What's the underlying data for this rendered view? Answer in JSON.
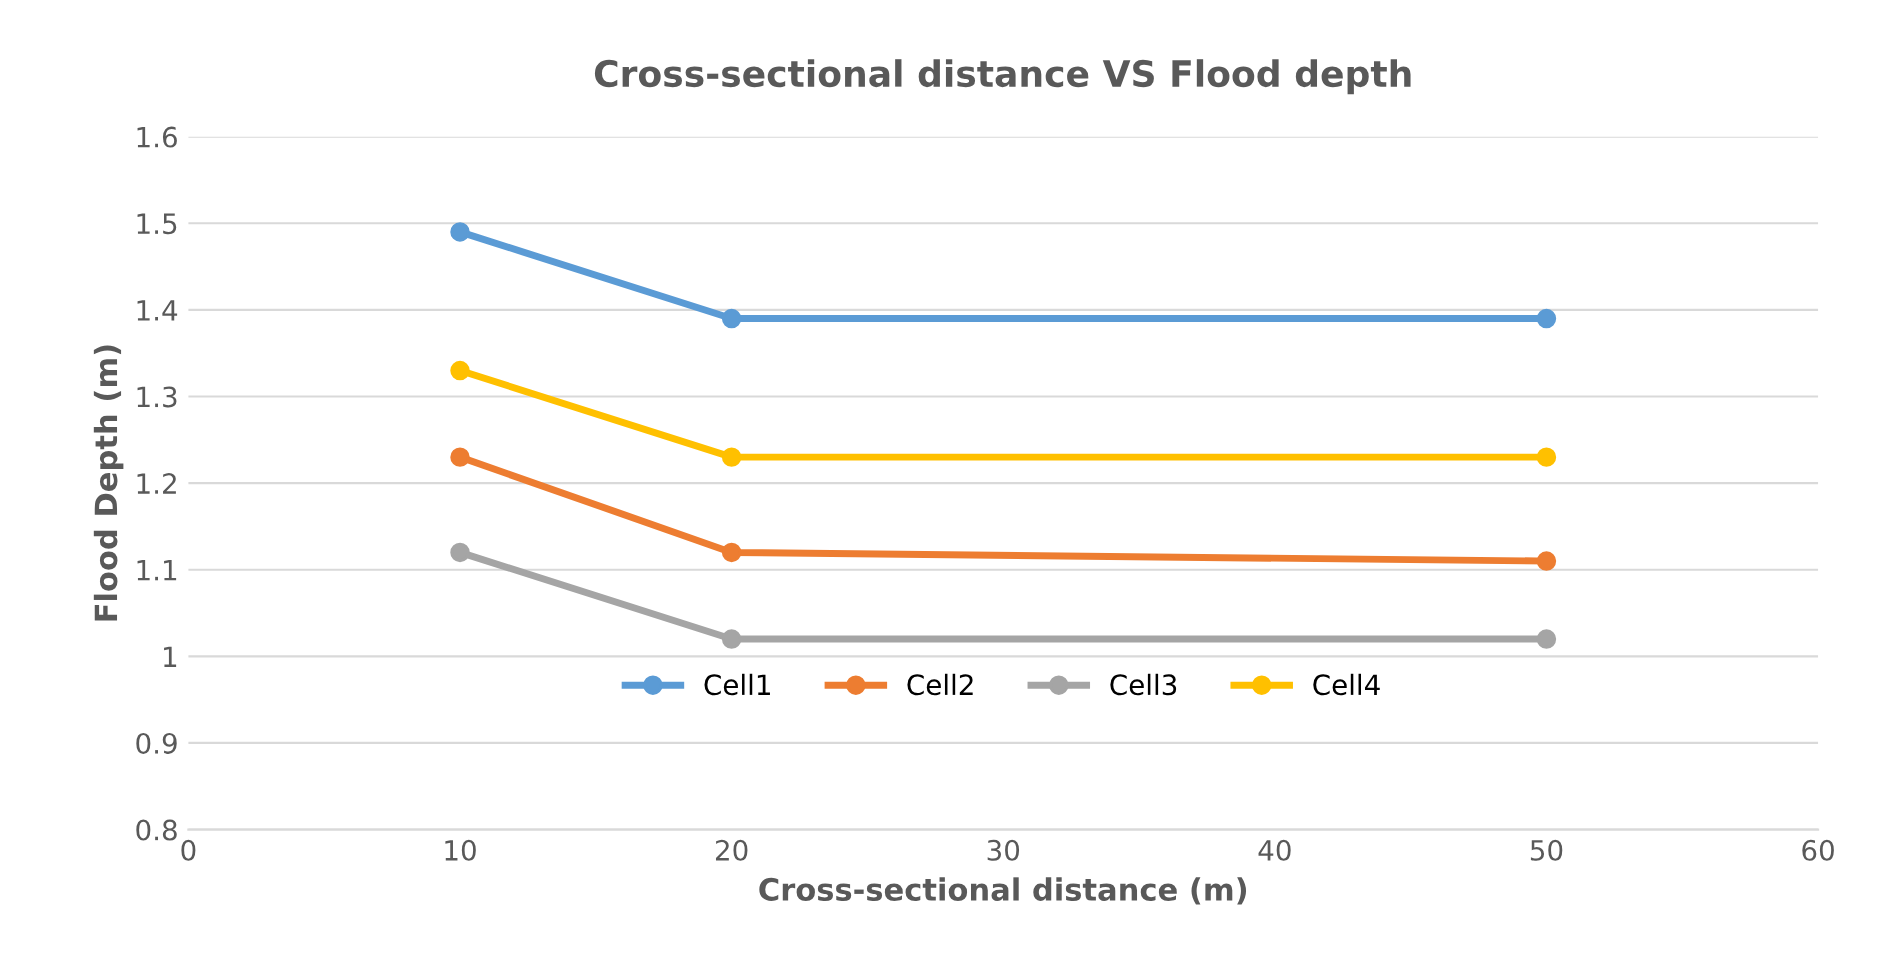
{
  "chart_data": {
    "type": "line",
    "title": "Cross-sectional distance VS Flood depth",
    "xlabel": "Cross-sectional distance (m)",
    "ylabel": "Flood Depth (m)",
    "x": [
      10,
      20,
      50
    ],
    "series": [
      {
        "name": "Cell1",
        "color": "#5b9bd5",
        "values": [
          1.49,
          1.39,
          1.39
        ]
      },
      {
        "name": "Cell2",
        "color": "#ed7d31",
        "values": [
          1.23,
          1.12,
          1.11
        ]
      },
      {
        "name": "Cell3",
        "color": "#a5a5a5",
        "values": [
          1.12,
          1.02,
          1.02
        ]
      },
      {
        "name": "Cell4",
        "color": "#ffc000",
        "values": [
          1.33,
          1.23,
          1.23
        ]
      }
    ],
    "xlim": [
      0,
      60
    ],
    "xticks": [
      0,
      10,
      20,
      30,
      40,
      50,
      60
    ],
    "ylim": [
      0.8,
      1.6
    ],
    "yticks": [
      0.8,
      0.9,
      1,
      1.1,
      1.2,
      1.3,
      1.4,
      1.5,
      1.6
    ],
    "grid": "y",
    "legend": "bottom",
    "marker": "circle",
    "line_style": "solid"
  }
}
